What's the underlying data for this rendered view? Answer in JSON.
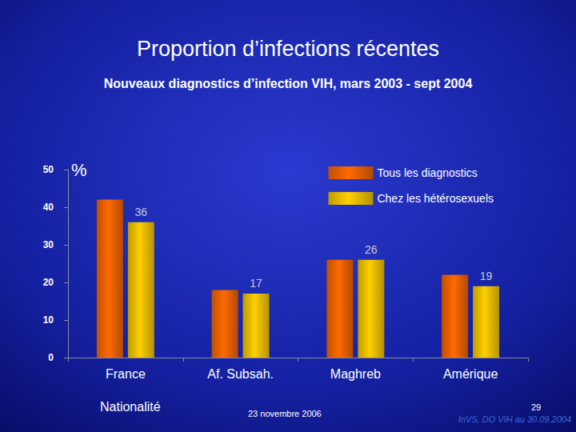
{
  "chart_data": {
    "type": "bar",
    "title": "Proportion d’infections récentes",
    "subtitle": "Nouveaux diagnostics d’infection VIH, mars 2003 - sept 2004",
    "xlabel": "Nationalité",
    "ylabel": "%",
    "categories": [
      "France",
      "Af. Subsah.",
      "Maghreb",
      "Amérique"
    ],
    "series": [
      {
        "name": "Tous les diagnostics",
        "color": "#ff6a00",
        "values": [
          42,
          18,
          26,
          22
        ]
      },
      {
        "name": "Chez les hétérosexuels",
        "color": "#ffd000",
        "values": [
          36,
          17,
          26,
          19
        ],
        "data_labels": true
      }
    ],
    "ylim": [
      0,
      50
    ],
    "yticks": [
      0,
      10,
      20,
      30,
      40,
      50
    ],
    "grid": false,
    "legend": "upper right",
    "annotations": [
      "23 novembre 2006",
      "29",
      "InVS, DO VIH au 30.09.2004"
    ]
  }
}
